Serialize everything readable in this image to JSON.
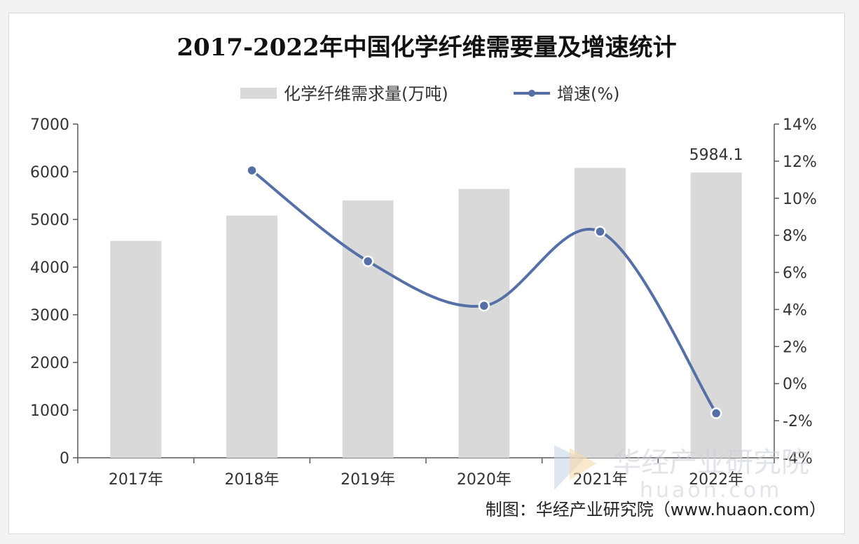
{
  "chart_data": {
    "type": "bar+line",
    "title": "2017-2022年中国化学纤维需要量及增速统计",
    "categories": [
      "2017年",
      "2018年",
      "2019年",
      "2020年",
      "2021年",
      "2022年"
    ],
    "series": [
      {
        "name": "化学纤维需求量(万吨)",
        "type": "bar",
        "axis": "left",
        "color": "#d9d9d9",
        "values": [
          4550,
          5080,
          5400,
          5640,
          6080,
          5984.1
        ]
      },
      {
        "name": "增速(%)",
        "type": "line",
        "axis": "right",
        "color": "#5470a6",
        "values": [
          null,
          11.5,
          6.6,
          4.2,
          8.2,
          -1.6
        ]
      }
    ],
    "data_labels": [
      {
        "series": 0,
        "index": 5,
        "text": "5984.1"
      }
    ],
    "y_left": {
      "min": 0,
      "max": 7000,
      "ticks": [
        "0",
        "1000",
        "2000",
        "3000",
        "4000",
        "5000",
        "6000",
        "7000"
      ]
    },
    "y_right": {
      "min": -4,
      "max": 14,
      "ticks": [
        "-4%",
        "-2%",
        "0%",
        "2%",
        "4%",
        "6%",
        "8%",
        "10%",
        "12%",
        "14%"
      ]
    },
    "legend_position": "top"
  },
  "source": "制图：华经产业研究院（www.huaon.com）",
  "watermark": {
    "cn": "华经产业研究院",
    "en": "huaon.com"
  }
}
